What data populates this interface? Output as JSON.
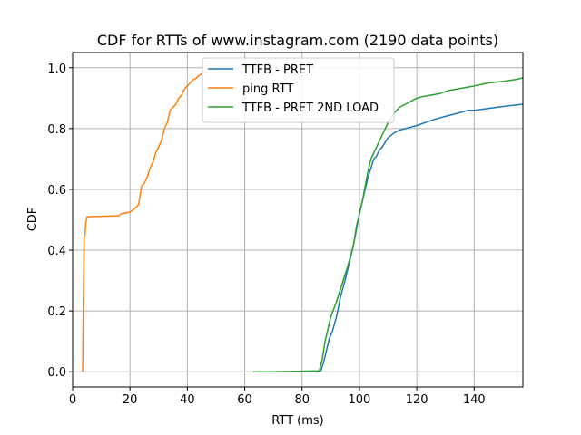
{
  "chart_data": {
    "type": "line",
    "title": "CDF for RTTs of www.instagram.com (2190 data points)",
    "xlabel": "RTT (ms)",
    "ylabel": "CDF",
    "xlim": [
      0,
      157
    ],
    "ylim": [
      -0.05,
      1.05
    ],
    "xticks": [
      0,
      20,
      40,
      60,
      80,
      100,
      120,
      140
    ],
    "yticks": [
      0.0,
      0.2,
      0.4,
      0.6,
      0.8,
      1.0
    ],
    "xtick_labels": [
      "0",
      "20",
      "40",
      "60",
      "80",
      "100",
      "120",
      "140"
    ],
    "ytick_labels": [
      "0.0",
      "0.2",
      "0.4",
      "0.6",
      "0.8",
      "1.0"
    ],
    "grid": true,
    "legend_position": "top-center",
    "series": [
      {
        "name": "TTFB - PRET",
        "color": "#1f77b4",
        "x": [
          85,
          86.5,
          87.5,
          88.5,
          89.5,
          90.5,
          92,
          93.5,
          95,
          96.5,
          98,
          99,
          100,
          101,
          102,
          103,
          104,
          105,
          106,
          107,
          108,
          110,
          112,
          114,
          116,
          118,
          120,
          123,
          126,
          130,
          134,
          138,
          140,
          144,
          148,
          152,
          155,
          157
        ],
        "y": [
          0.0,
          0.003,
          0.03,
          0.07,
          0.11,
          0.13,
          0.18,
          0.25,
          0.3,
          0.36,
          0.42,
          0.48,
          0.52,
          0.56,
          0.6,
          0.64,
          0.67,
          0.7,
          0.71,
          0.73,
          0.74,
          0.77,
          0.785,
          0.795,
          0.8,
          0.805,
          0.81,
          0.82,
          0.83,
          0.84,
          0.85,
          0.86,
          0.86,
          0.865,
          0.87,
          0.875,
          0.878,
          0.88
        ]
      },
      {
        "name": "ping RTT",
        "color": "#ff7f0e",
        "x": [
          3.5,
          3.7,
          4.0,
          4.3,
          4.6,
          5.0,
          8,
          12,
          16,
          17,
          20,
          22,
          23,
          24,
          25,
          26,
          27,
          28,
          29,
          30,
          31,
          32,
          33,
          34,
          35,
          36,
          37,
          38,
          39,
          40,
          41,
          42,
          43,
          44,
          45,
          46,
          47
        ],
        "y": [
          0.0,
          0.2,
          0.44,
          0.45,
          0.49,
          0.51,
          0.511,
          0.512,
          0.513,
          0.52,
          0.525,
          0.54,
          0.55,
          0.61,
          0.62,
          0.64,
          0.67,
          0.69,
          0.72,
          0.74,
          0.76,
          0.8,
          0.82,
          0.86,
          0.87,
          0.88,
          0.9,
          0.91,
          0.93,
          0.94,
          0.95,
          0.96,
          0.965,
          0.975,
          0.98,
          0.985,
          0.99
        ]
      },
      {
        "name": "TTFB - PRET 2ND LOAD",
        "color": "#2ca02c",
        "x": [
          63,
          70,
          80,
          86,
          87,
          88,
          89,
          90,
          92,
          94,
          96,
          98,
          99,
          100,
          101,
          102,
          103,
          104,
          105,
          106,
          107,
          108,
          109,
          110,
          112,
          114,
          116,
          118,
          120,
          122,
          125,
          128,
          131,
          134,
          137,
          140,
          145,
          150,
          155,
          157
        ],
        "y": [
          0.0,
          0.0,
          0.002,
          0.003,
          0.04,
          0.1,
          0.14,
          0.18,
          0.23,
          0.29,
          0.35,
          0.42,
          0.47,
          0.52,
          0.56,
          0.61,
          0.66,
          0.7,
          0.72,
          0.74,
          0.76,
          0.78,
          0.8,
          0.82,
          0.85,
          0.87,
          0.88,
          0.89,
          0.9,
          0.905,
          0.91,
          0.915,
          0.925,
          0.93,
          0.935,
          0.94,
          0.95,
          0.955,
          0.962,
          0.967
        ]
      }
    ]
  }
}
